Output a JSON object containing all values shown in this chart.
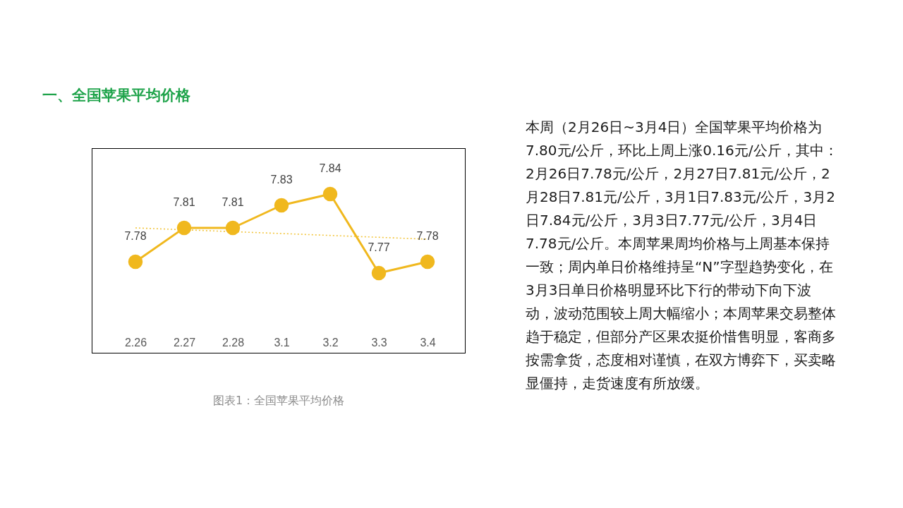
{
  "chart_data": {
    "type": "line",
    "title": "一、全国苹果平均价格",
    "categories": [
      "2.26",
      "2.27",
      "2.28",
      "3.1",
      "3.2",
      "3.3",
      "3.4"
    ],
    "series": [
      {
        "color": "#f0b81e",
        "values": [
          7.78,
          7.81,
          7.81,
          7.83,
          7.84,
          7.77,
          7.78
        ],
        "value_labels": [
          "7.78",
          "7.81",
          "7.81",
          "7.83",
          "7.84",
          "7.77",
          "7.78"
        ]
      },
      {
        "type": "line",
        "x": [
          "2.26",
          "3.4"
        ],
        "values": [
          7.81,
          7.8
        ],
        "color": "#f2c53d",
        "line_style": "dotted",
        "marker": "none"
      }
    ],
    "tick_labels": "x",
    "marker": "circle",
    "line_style": "solid",
    "annotations": [
      "图表1：全国苹果平均价格",
      "本周（2月26日~3月4日）全国苹果平均价格为7.80元/公斤，环比上周上涨0.16元/公斤，其中：2月26日7.78元/公斤，2月27日7.81元/公斤，2月28日7.81元/公斤，3月1日7.83元/公斤，3月2日7.84元/公斤，3月3日7.77元/公斤，3月4日7.78元/公斤。本周苹果周均价格与上周基本保持一致；周内单日价格维持呈“N”字型趋势变化，在3月3日单日价格明显环比下行的带动下向下波动，波动范围较上周大幅缩小；本周苹果交易整体趋于稳定，但部分产区果农挺价惜售明显，客商多按需拿货，态度相对谨慎，在双方博弈下，买卖略显僵持，走货速度有所放缓。"
    ]
  }
}
